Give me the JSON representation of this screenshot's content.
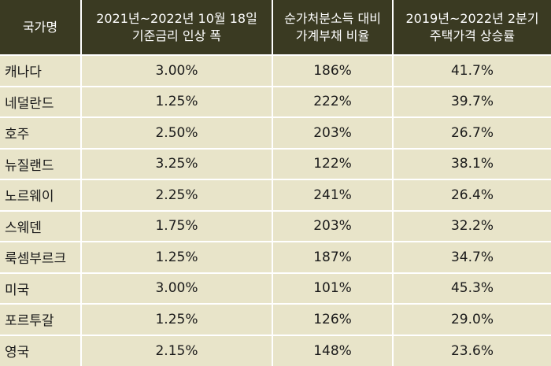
{
  "table": {
    "headers": [
      {
        "lines": [
          "국가명"
        ]
      },
      {
        "lines": [
          "2021년~2022년 10월 18일",
          "기준금리 인상 폭"
        ]
      },
      {
        "lines": [
          "순가처분소득 대비",
          "가계부채 비율"
        ]
      },
      {
        "lines": [
          "2019년~2022년 2분기",
          "주택가격 상승률"
        ]
      }
    ],
    "rows": [
      {
        "country": "캐나다",
        "rate_hike": "3.00%",
        "debt_ratio": "186%",
        "house_price": "41.7%"
      },
      {
        "country": "네덜란드",
        "rate_hike": "1.25%",
        "debt_ratio": "222%",
        "house_price": "39.7%"
      },
      {
        "country": "호주",
        "rate_hike": "2.50%",
        "debt_ratio": "203%",
        "house_price": "26.7%"
      },
      {
        "country": "뉴질랜드",
        "rate_hike": "3.25%",
        "debt_ratio": "122%",
        "house_price": "38.1%"
      },
      {
        "country": "노르웨이",
        "rate_hike": "2.25%",
        "debt_ratio": "241%",
        "house_price": "26.4%"
      },
      {
        "country": "스웨덴",
        "rate_hike": "1.75%",
        "debt_ratio": "203%",
        "house_price": "32.2%"
      },
      {
        "country": "룩셈부르크",
        "rate_hike": "1.25%",
        "debt_ratio": "187%",
        "house_price": "34.7%"
      },
      {
        "country": "미국",
        "rate_hike": "3.00%",
        "debt_ratio": "101%",
        "house_price": "45.3%"
      },
      {
        "country": "포르투갈",
        "rate_hike": "1.25%",
        "debt_ratio": "126%",
        "house_price": "29.0%"
      },
      {
        "country": "영국",
        "rate_hike": "2.15%",
        "debt_ratio": "148%",
        "house_price": "23.6%"
      }
    ]
  }
}
